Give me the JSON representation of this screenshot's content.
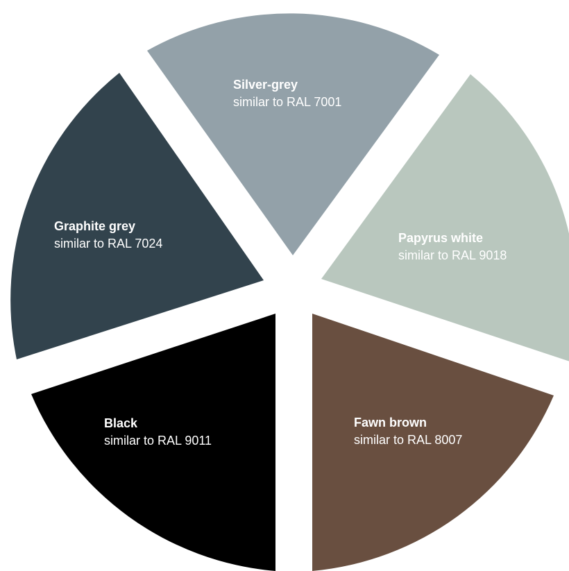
{
  "colors": [
    {
      "key": "silver",
      "name": "Silver-grey",
      "sub": "similar to RAL 7001",
      "fill": "#93a1a9"
    },
    {
      "key": "papyrus",
      "name": "Papyrus white",
      "sub": "similar to RAL 9018",
      "fill": "#b9c7be"
    },
    {
      "key": "fawn",
      "name": "Fawn brown",
      "sub": "similar to RAL 8007",
      "fill": "#694f40"
    },
    {
      "key": "black",
      "name": "Black",
      "sub": "similar to RAL 9011",
      "fill": "#000000"
    },
    {
      "key": "graphite",
      "name": "Graphite grey",
      "sub": "similar to RAL 7024",
      "fill": "#32434d"
    }
  ]
}
